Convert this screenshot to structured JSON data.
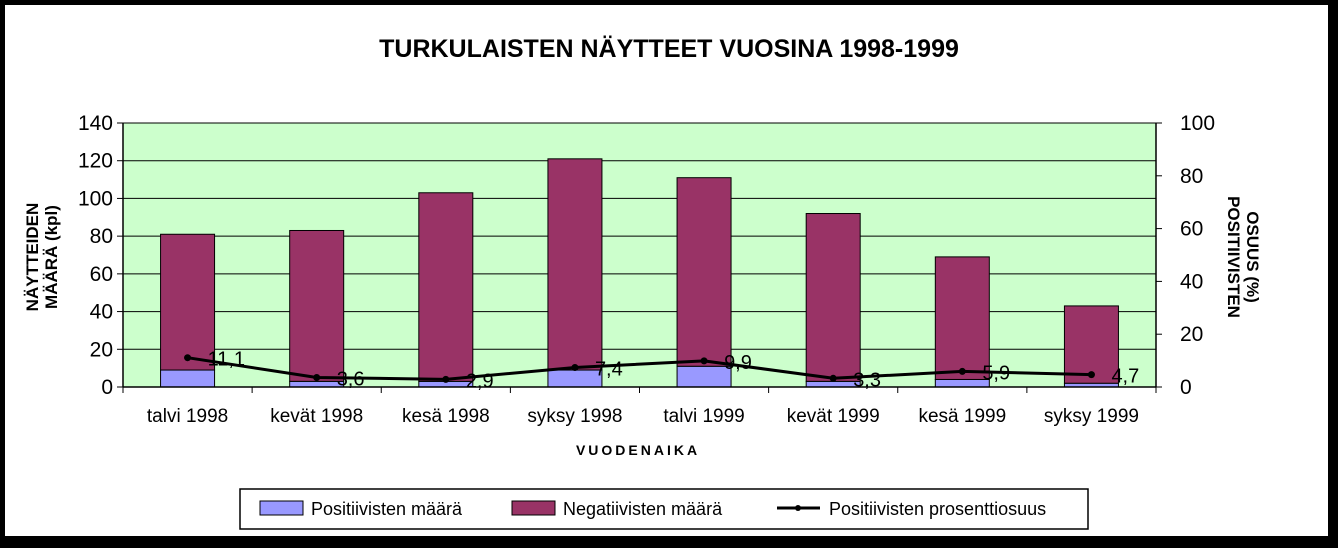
{
  "chart_data": {
    "type": "bar",
    "stacked": true,
    "title": "TURKULAISTEN NÄYTTEET VUOSINA 1998-1999",
    "xlabel": "VUODENAIKA",
    "ylabel_lines": [
      "NÄYTTEIDEN",
      "MÄÄRÄ (kpl)"
    ],
    "y2label_lines": [
      "POSITIIVISTEN",
      "OSUUS (%)"
    ],
    "categories": [
      "talvi 1998",
      "kevät 1998",
      "kesä 1998",
      "syksy 1998",
      "talvi 1999",
      "kevät 1999",
      "kesä 1999",
      "syksy 1999"
    ],
    "ylim": [
      0,
      140
    ],
    "yticks": [
      0,
      20,
      40,
      60,
      80,
      100,
      120,
      140
    ],
    "y2lim": [
      0,
      100
    ],
    "y2ticks": [
      0,
      20,
      40,
      60,
      80,
      100
    ],
    "grid": true,
    "legend_position": "bottom",
    "series": [
      {
        "name": "Positiivisten määrä",
        "type": "bar",
        "axis": "left",
        "color": "#9999ff",
        "values": [
          9,
          3,
          3,
          9,
          11,
          3,
          4,
          2
        ]
      },
      {
        "name": "Negatiivisten määrä",
        "type": "bar",
        "axis": "left",
        "color": "#993366",
        "values": [
          72,
          80,
          100,
          112,
          100,
          89,
          65,
          41
        ]
      },
      {
        "name": "Positiivisten prosenttiosuus",
        "type": "line",
        "axis": "right",
        "color": "#000000",
        "values": [
          11.1,
          3.6,
          2.9,
          7.4,
          9.9,
          3.3,
          5.9,
          4.7
        ],
        "labels": [
          "11,1",
          "3,6",
          "2,9",
          "7,4",
          "9,9",
          "3,3",
          "5,9",
          "4,7"
        ]
      }
    ],
    "colors": {
      "plot_background": "#ccffcc",
      "frame": "#000000"
    }
  }
}
